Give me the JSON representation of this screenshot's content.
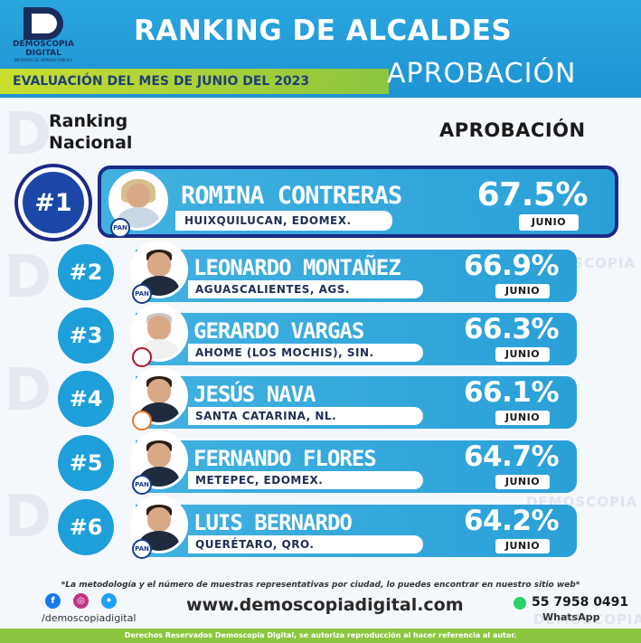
{
  "header": {
    "logo_line1": "DEMOSCOPIA",
    "logo_line2": "DIGITAL",
    "logo_line3": "INFORMES DE OPINIÓN PÚBLICA",
    "title": "RANKING DE ALCALDES",
    "subtitle": "EVALUACIÓN DEL MES DE JUNIO DEL 2023",
    "approval_heading": "APROBACIÓN"
  },
  "columns": {
    "ranking_line1": "Ranking",
    "ranking_line2": "Nacional",
    "approval": "APROBACIÓN"
  },
  "watermark": "DEMOSCOPIA",
  "rows": [
    {
      "rank": "#1",
      "name": "ROMINA CONTRERAS",
      "place": "HUIXQUILUCAN, EDOMEX.",
      "approval": "67.5%",
      "month": "JUNIO",
      "party": "PAN"
    },
    {
      "rank": "#2",
      "name": "LEONARDO MONTAÑEZ",
      "place": "AGUASCALIENTES, AGS.",
      "approval": "66.9%",
      "month": "JUNIO",
      "party": "PAN"
    },
    {
      "rank": "#3",
      "name": "GERARDO VARGAS",
      "place": "AHOME (LOS MOCHIS), SIN.",
      "approval": "66.3%",
      "month": "JUNIO",
      "party": ""
    },
    {
      "rank": "#4",
      "name": "JESÚS NAVA",
      "place": "SANTA CATARINA, NL.",
      "approval": "66.1%",
      "month": "JUNIO",
      "party": ""
    },
    {
      "rank": "#5",
      "name": "FERNANDO FLORES",
      "place": "METEPEC, EDOMEX.",
      "approval": "64.7%",
      "month": "JUNIO",
      "party": "PAN"
    },
    {
      "rank": "#6",
      "name": "LUIS BERNARDO",
      "place": "QUERÉTARO, QRO.",
      "approval": "64.2%",
      "month": "JUNIO",
      "party": "PAN"
    }
  ],
  "footer": {
    "note": "*La metodología y el número de muestras representativas por ciudad, lo puedes encontrar en nuestro sitio web*",
    "handle": "/demoscopiadigital",
    "website": "www.demoscopiadigital.com",
    "phone": "55 7958 0491",
    "whatsapp": "WhatsApp",
    "rights": "Derechos Reservados Demoscopia Digital, se autoriza reproducción al hacer referencia al autor."
  },
  "colors": {
    "header_blue": "#29a6de",
    "card_blue": "#2aa0d8",
    "green": "#8cc540",
    "navy": "#1b2a88"
  }
}
